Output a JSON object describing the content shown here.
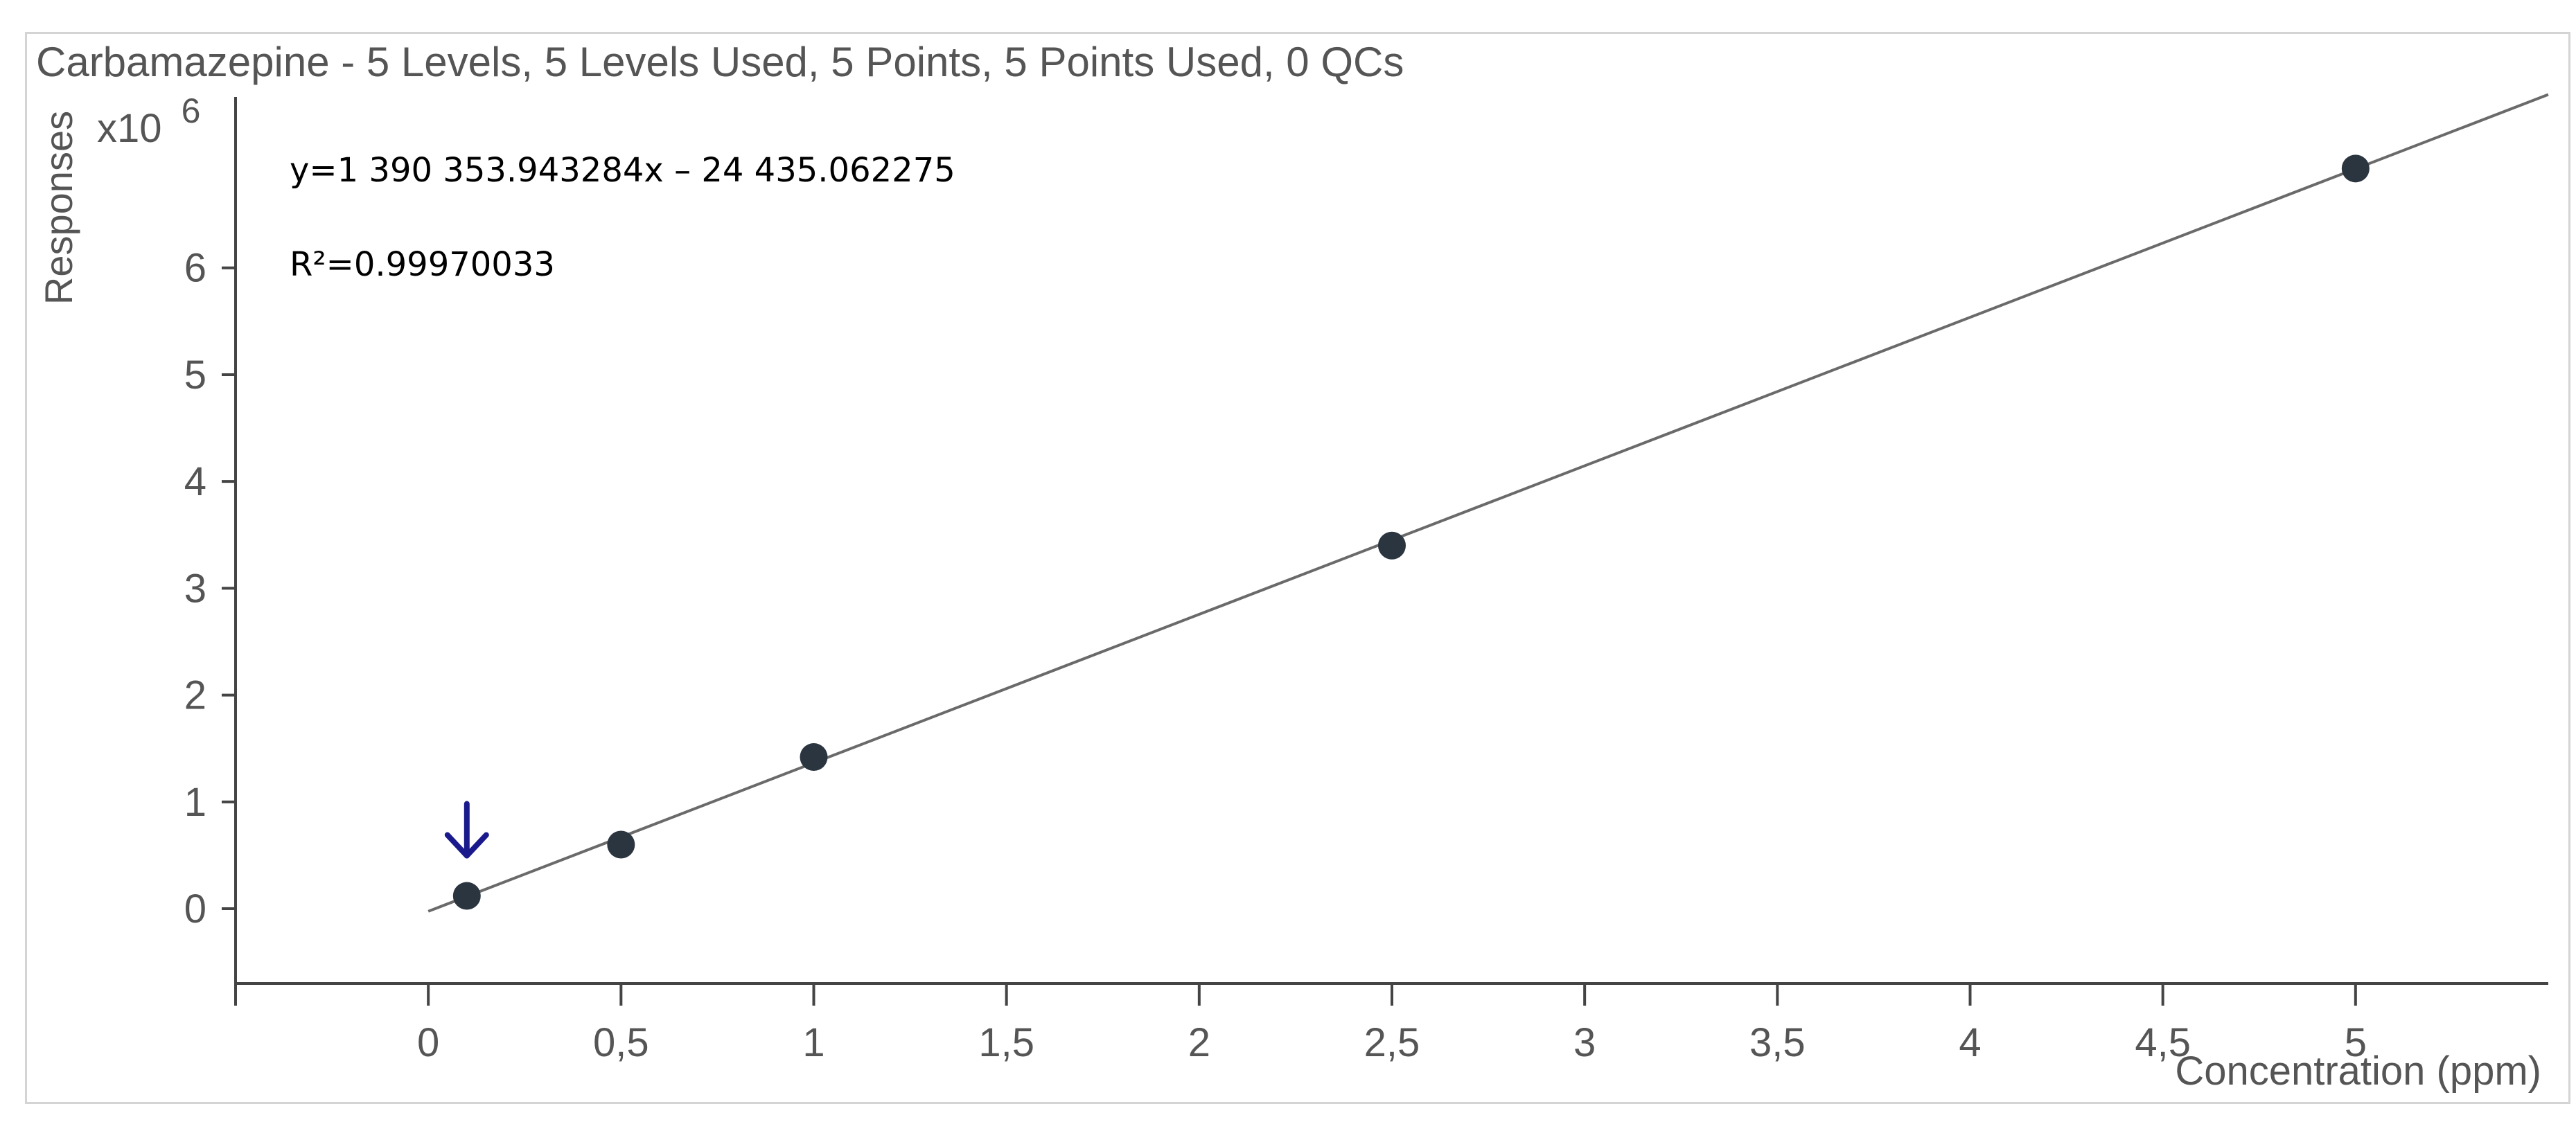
{
  "chart_data": {
    "type": "scatter",
    "title": "Carbamazepine - 5 Levels, 5 Levels Used, 5 Points, 5 Points Used, 0 QCs",
    "xlabel": "Concentration (ppm)",
    "ylabel": "Responses",
    "y_multiplier": "x10",
    "y_exponent": "6",
    "xlim": [
      -0.5,
      5.5
    ],
    "ylim": [
      -0.7,
      7.6
    ],
    "x_ticks": [
      0,
      0.5,
      1,
      1.5,
      2,
      2.5,
      3,
      3.5,
      4,
      4.5,
      5
    ],
    "x_tick_labels": [
      "0",
      "0,5",
      "1",
      "1,5",
      "2",
      "2,5",
      "3",
      "3,5",
      "4",
      "4,5",
      "5"
    ],
    "y_ticks": [
      0,
      1,
      2,
      3,
      4,
      5,
      6
    ],
    "y_tick_labels": [
      "0",
      "1",
      "2",
      "3",
      "4",
      "5",
      "6"
    ],
    "grid": false,
    "series": [
      {
        "x": [
          0.1,
          0.5,
          1,
          2.5,
          5
        ],
        "y": [
          0.12,
          0.6,
          1.42,
          3.4,
          6.93
        ]
      }
    ],
    "fit": {
      "slope": 1390353.943284,
      "intercept": -24435.062275,
      "equation_label": "y=1 390 353.943284x – 24 435.062275",
      "r2_label": "R²=0.99970033",
      "x_range": [
        0,
        5.5
      ]
    },
    "annotation": {
      "type": "arrow",
      "target_x": 0.1
    },
    "colors": {
      "point": "#2b3540",
      "line": "#6a6a6a",
      "arrow": "#1a1a8c",
      "axis": "#444444",
      "text": "#555555"
    }
  }
}
